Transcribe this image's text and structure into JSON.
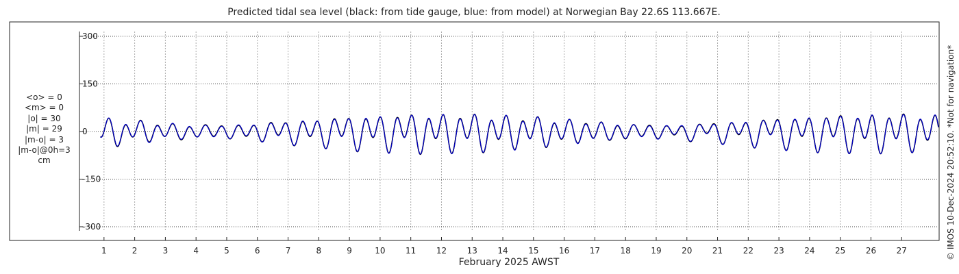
{
  "chart_data": {
    "type": "line",
    "title": "Predicted tidal sea level (black: from tide gauge, blue: from model) at Norwegian Bay 22.6S 113.667E.",
    "xlabel": "February 2025 AWST",
    "ylabel": "",
    "xlim": [
      0.2,
      28.2
    ],
    "ylim": [
      -320,
      320
    ],
    "yticks": [
      300,
      150,
      0,
      -150,
      -300
    ],
    "ytick_labels": [
      "300",
      "150",
      "0",
      "-150",
      "-300"
    ],
    "xticks": [
      1,
      2,
      3,
      4,
      5,
      6,
      7,
      8,
      9,
      10,
      11,
      12,
      13,
      14,
      15,
      16,
      17,
      18,
      19,
      20,
      21,
      22,
      23,
      24,
      25,
      26,
      27
    ],
    "xtick_labels": [
      "1",
      "2",
      "3",
      "4",
      "5",
      "6",
      "7",
      "8",
      "9",
      "10",
      "11",
      "12",
      "13",
      "14",
      "15",
      "16",
      "17",
      "18",
      "19",
      "20",
      "21",
      "22",
      "23",
      "24",
      "25",
      "26",
      "27"
    ],
    "grid": true,
    "series": [
      {
        "color": "#000000",
        "x": [],
        "y": []
      },
      {
        "color": "#0000cc",
        "x": [],
        "y": []
      }
    ],
    "stats": [
      "<o> = 0",
      "<m> = 0",
      "|o| = 30",
      "|m| = 29",
      "|m-o| = 3",
      "|m-o|@0h=3",
      "cm"
    ]
  },
  "credit": "© IMOS 10-Dec-2024 20:52:10. *Not for navigation*"
}
